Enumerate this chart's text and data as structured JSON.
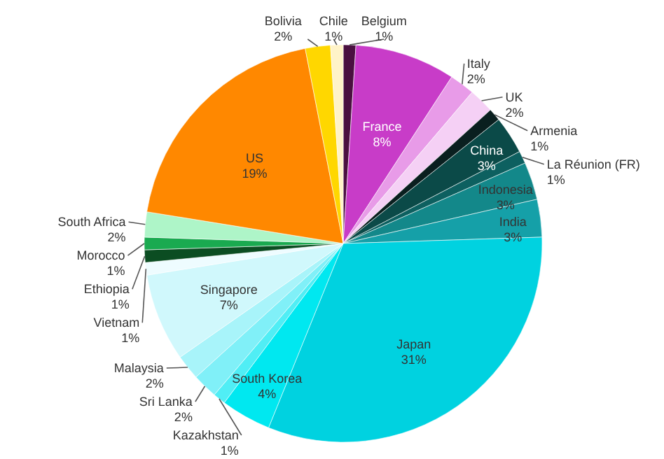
{
  "chart_data": {
    "type": "pie",
    "categories": [
      "Belgium",
      "France",
      "Italy",
      "UK",
      "Armenia",
      "China",
      "La Réunion (FR)",
      "Indonesia",
      "India",
      "Japan",
      "South Korea",
      "Kazakhstan",
      "Sri Lanka",
      "Malaysia",
      "Singapore",
      "Vietnam",
      "Ethiopia",
      "Morocco",
      "South Africa",
      "US",
      "Bolivia",
      "Chile"
    ],
    "values": [
      1,
      8,
      2,
      2,
      1,
      3,
      1,
      3,
      3,
      31,
      4,
      1,
      2,
      2,
      7,
      1,
      1,
      1,
      2,
      19,
      2,
      1
    ],
    "value_labels": [
      "1%",
      "8%",
      "2%",
      "2%",
      "1%",
      "3%",
      "1%",
      "3%",
      "3%",
      "31%",
      "4%",
      "1%",
      "2%",
      "2%",
      "7%",
      "1%",
      "1%",
      "1%",
      "2%",
      "19%",
      "2%",
      "1%"
    ],
    "colors": [
      "#4a1040",
      "#c83cc8",
      "#e89be8",
      "#f5d0f5",
      "#0a1f1f",
      "#0b4a48",
      "#0d6060",
      "#13888a",
      "#15a0a8",
      "#00d2e0",
      "#00e8f0",
      "#50eef5",
      "#80f0f8",
      "#a8f4fa",
      "#d0f8fc",
      "#eefcff",
      "#0b4d22",
      "#1aaa50",
      "#aef5c8",
      "#ff8800",
      "#ffd700",
      "#fff3c8"
    ]
  }
}
